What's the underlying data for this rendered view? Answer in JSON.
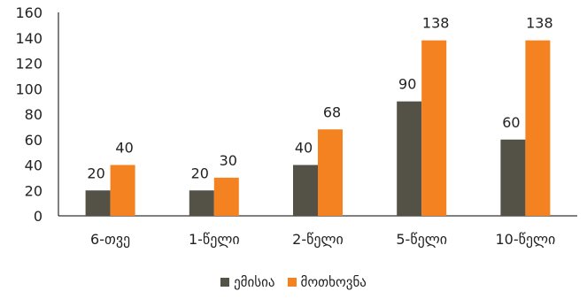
{
  "chart_data": {
    "type": "bar",
    "categories": [
      "6-თვე",
      "1-წელი",
      "2-წელი",
      "5-წელი",
      "10-წელი"
    ],
    "series": [
      {
        "name": "ემისია",
        "values": [
          20,
          20,
          40,
          90,
          60
        ],
        "color": "#545247"
      },
      {
        "name": "მოთხოვნა",
        "values": [
          40,
          30,
          68,
          138,
          138
        ],
        "color": "#F58220"
      }
    ],
    "yticks": [
      0,
      20,
      40,
      60,
      80,
      100,
      120,
      140,
      160
    ],
    "ylim": [
      0,
      160
    ],
    "grid": false,
    "legend_position": "bottom"
  }
}
